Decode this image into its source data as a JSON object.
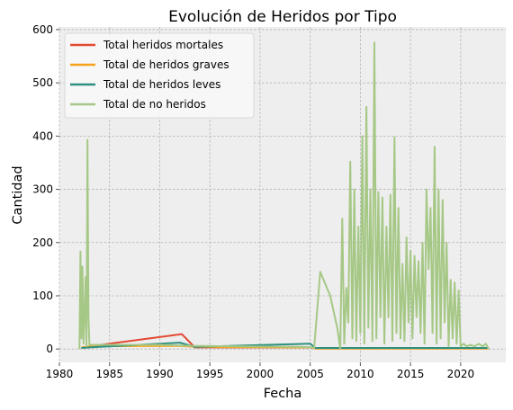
{
  "chart_data": {
    "type": "line",
    "title": "Evolución de Heridos por Tipo",
    "xlabel": "Fecha",
    "ylabel": "Cantidad",
    "xlim": [
      1980,
      2024.5
    ],
    "ylim": [
      -25,
      605
    ],
    "xticks": [
      1980,
      1985,
      1990,
      1995,
      2000,
      2005,
      2010,
      2015,
      2020
    ],
    "yticks": [
      0,
      100,
      200,
      300,
      400,
      500,
      600
    ],
    "grid": true,
    "legend_position": "top-left",
    "series": [
      {
        "name": "Total heridos mortales",
        "color": "#E24A33",
        "x": [
          1982.2,
          1983.0,
          1992.2,
          1993.5,
          2005.0,
          2005.5,
          2008.0,
          2022.8
        ],
        "y": [
          2,
          5,
          28,
          3,
          3,
          1,
          1,
          1
        ]
      },
      {
        "name": "Total de heridos graves",
        "color": "#F5A31A",
        "x": [
          1982.2,
          1983.0,
          1992.0,
          1993.5,
          2005.0,
          2005.5,
          2008.0,
          2022.8
        ],
        "y": [
          3,
          5,
          6,
          4,
          3,
          1,
          1,
          1
        ]
      },
      {
        "name": "Total de heridos leves",
        "color": "#2E9080",
        "x": [
          1982.2,
          1983.0,
          1992.0,
          1993.5,
          2005.0,
          2005.5,
          2008.0,
          2022.8
        ],
        "y": [
          2,
          3,
          12,
          4,
          10,
          2,
          2,
          2
        ]
      },
      {
        "name": "Total de no heridos",
        "color": "#A6C886",
        "x": [
          1982.0,
          1982.1,
          1982.2,
          1982.3,
          1982.4,
          1982.5,
          1982.6,
          1982.7,
          1982.8,
          1982.9,
          1983.0,
          1984.0,
          1990.0,
          1993.0,
          1998.0,
          2004.0,
          2005.0,
          2005.4,
          2006.0,
          2007.0,
          2007.7,
          2008.0,
          2008.2,
          2008.4,
          2008.6,
          2008.8,
          2009.0,
          2009.2,
          2009.4,
          2009.6,
          2009.8,
          2010.0,
          2010.2,
          2010.4,
          2010.6,
          2010.8,
          2011.0,
          2011.2,
          2011.4,
          2011.6,
          2011.8,
          2012.0,
          2012.2,
          2012.4,
          2012.6,
          2012.8,
          2013.0,
          2013.2,
          2013.4,
          2013.6,
          2013.8,
          2014.0,
          2014.2,
          2014.4,
          2014.6,
          2014.8,
          2015.0,
          2015.2,
          2015.4,
          2015.6,
          2015.8,
          2016.0,
          2016.2,
          2016.4,
          2016.6,
          2016.8,
          2017.0,
          2017.2,
          2017.4,
          2017.6,
          2017.8,
          2018.0,
          2018.2,
          2018.4,
          2018.6,
          2018.8,
          2019.0,
          2019.2,
          2019.4,
          2019.6,
          2019.8,
          2020.0,
          2020.3,
          2020.6,
          2021.0,
          2021.4,
          2021.8,
          2022.2,
          2022.5,
          2022.8
        ],
        "y": [
          0,
          183,
          20,
          155,
          10,
          60,
          135,
          5,
          393,
          60,
          8,
          8,
          8,
          6,
          5,
          4,
          3,
          2,
          145,
          100,
          40,
          1,
          245,
          10,
          115,
          50,
          352,
          20,
          300,
          15,
          230,
          30,
          400,
          10,
          455,
          40,
          300,
          15,
          576,
          20,
          295,
          60,
          285,
          10,
          230,
          60,
          290,
          15,
          398,
          30,
          265,
          20,
          160,
          15,
          210,
          50,
          185,
          20,
          175,
          60,
          165,
          30,
          200,
          10,
          300,
          150,
          265,
          30,
          380,
          10,
          300,
          20,
          280,
          50,
          200,
          5,
          130,
          20,
          125,
          10,
          110,
          5,
          10,
          5,
          8,
          5,
          10,
          5,
          10,
          0
        ]
      }
    ]
  }
}
